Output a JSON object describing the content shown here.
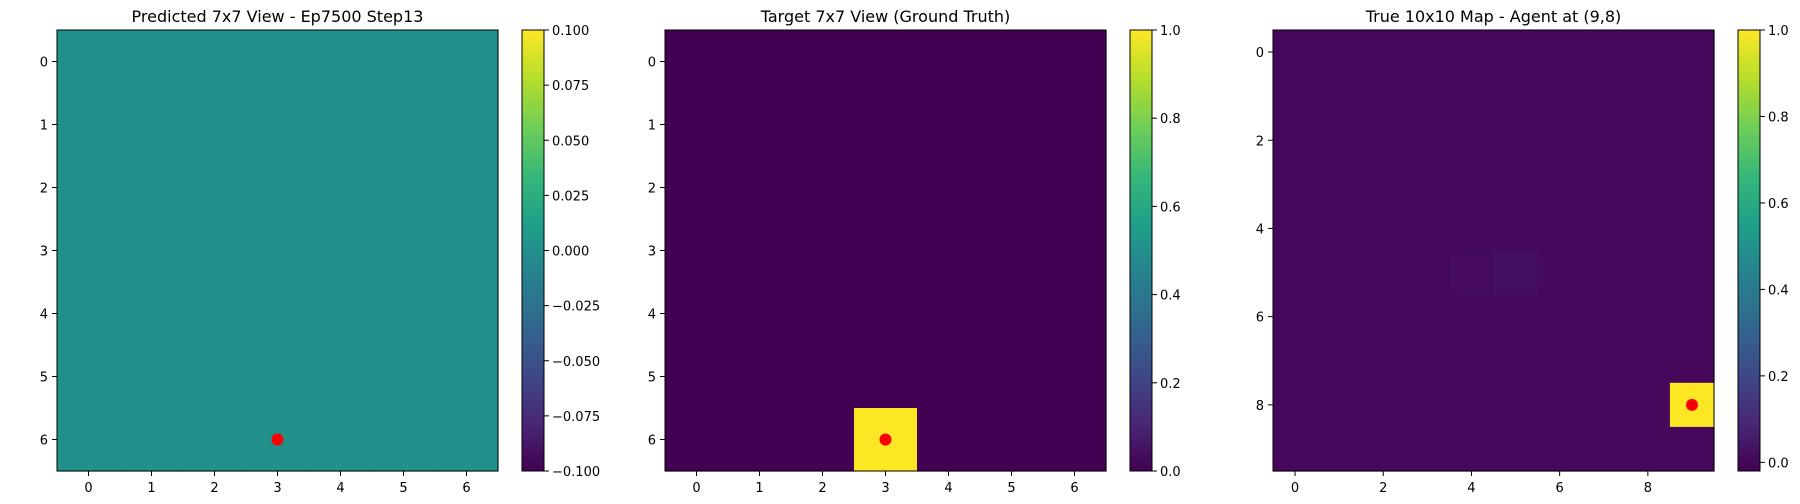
{
  "colormap": [
    "#440154",
    "#482878",
    "#3e4989",
    "#31688e",
    "#26828e",
    "#1f9e89",
    "#35b779",
    "#6ece58",
    "#b5de2b",
    "#fde725"
  ],
  "marker_color": "#ff0000",
  "chart_data": [
    {
      "type": "heatmap",
      "title": "Predicted 7x7 View - Ep7500 Step13",
      "rows": 7,
      "cols": 7,
      "vmin": -0.1,
      "vmax": 0.1,
      "fill_value": 0.0,
      "cells": [],
      "marker": {
        "x": 3,
        "y": 6
      },
      "xticks": [
        0,
        1,
        2,
        3,
        4,
        5,
        6
      ],
      "yticks": [
        0,
        1,
        2,
        3,
        4,
        5,
        6
      ],
      "cbar_ticks": [
        "0.100",
        "0.075",
        "0.050",
        "0.025",
        "0.000",
        "−0.025",
        "−0.050",
        "−0.075",
        "−0.100"
      ],
      "cbar_values": [
        0.1,
        0.075,
        0.05,
        0.025,
        0.0,
        -0.025,
        -0.05,
        -0.075,
        -0.1
      ]
    },
    {
      "type": "heatmap",
      "title": "Target 7x7 View (Ground Truth)",
      "rows": 7,
      "cols": 7,
      "vmin": 0.0,
      "vmax": 1.0,
      "fill_value": 0.0,
      "cells": [
        {
          "x": 3,
          "y": 6,
          "v": 1.0
        }
      ],
      "marker": {
        "x": 3,
        "y": 6
      },
      "xticks": [
        0,
        1,
        2,
        3,
        4,
        5,
        6
      ],
      "yticks": [
        0,
        1,
        2,
        3,
        4,
        5,
        6
      ],
      "cbar_ticks": [
        "1.0",
        "0.8",
        "0.6",
        "0.4",
        "0.2",
        "0.0"
      ],
      "cbar_values": [
        1.0,
        0.8,
        0.6,
        0.4,
        0.2,
        0.0
      ]
    },
    {
      "type": "heatmap",
      "title": "True 10x10 Map - Agent at (9,8)",
      "rows": 10,
      "cols": 10,
      "vmin": -0.02,
      "vmax": 1.0,
      "fill_value": 0.0,
      "cells": [
        {
          "x": 4,
          "y": 5,
          "v": 0.01
        },
        {
          "x": 5,
          "y": 5,
          "v": 0.02
        },
        {
          "x": 9,
          "y": 8,
          "v": 1.0
        }
      ],
      "marker": {
        "x": 9,
        "y": 8
      },
      "xticks": [
        0,
        2,
        4,
        6,
        8
      ],
      "yticks": [
        0,
        2,
        4,
        6,
        8
      ],
      "cbar_ticks": [
        "1.0",
        "0.8",
        "0.6",
        "0.4",
        "0.2",
        "0.0"
      ],
      "cbar_values": [
        1.0,
        0.8,
        0.6,
        0.4,
        0.2,
        0.0
      ]
    }
  ]
}
